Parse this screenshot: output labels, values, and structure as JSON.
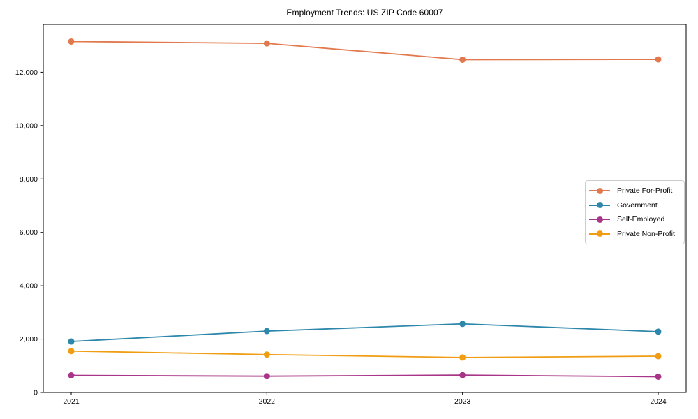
{
  "chart_data": {
    "type": "line",
    "title": "Employment Trends: US ZIP Code 60007",
    "xlabel": "",
    "ylabel": "",
    "x": [
      "2021",
      "2022",
      "2023",
      "2024"
    ],
    "series": [
      {
        "name": "Private For-Profit",
        "color": "#e2794e",
        "values": [
          13150,
          13080,
          12470,
          12480
        ]
      },
      {
        "name": "Government",
        "color": "#2d87aa",
        "values": [
          1910,
          2300,
          2570,
          2280
        ]
      },
      {
        "name": "Self-Employed",
        "color": "#a93588",
        "values": [
          640,
          610,
          650,
          590
        ]
      },
      {
        "name": "Private Non-Profit",
        "color": "#f09d13",
        "values": [
          1550,
          1420,
          1310,
          1360
        ]
      }
    ],
    "y_ticks": [
      0,
      2000,
      4000,
      6000,
      8000,
      10000,
      12000
    ],
    "y_tick_labels": [
      "0",
      "2,000",
      "4,000",
      "6,000",
      "8,000",
      "10,000",
      "12,000"
    ],
    "ylim": [
      0,
      13790
    ],
    "grid": false,
    "legend_position": "center-right"
  }
}
